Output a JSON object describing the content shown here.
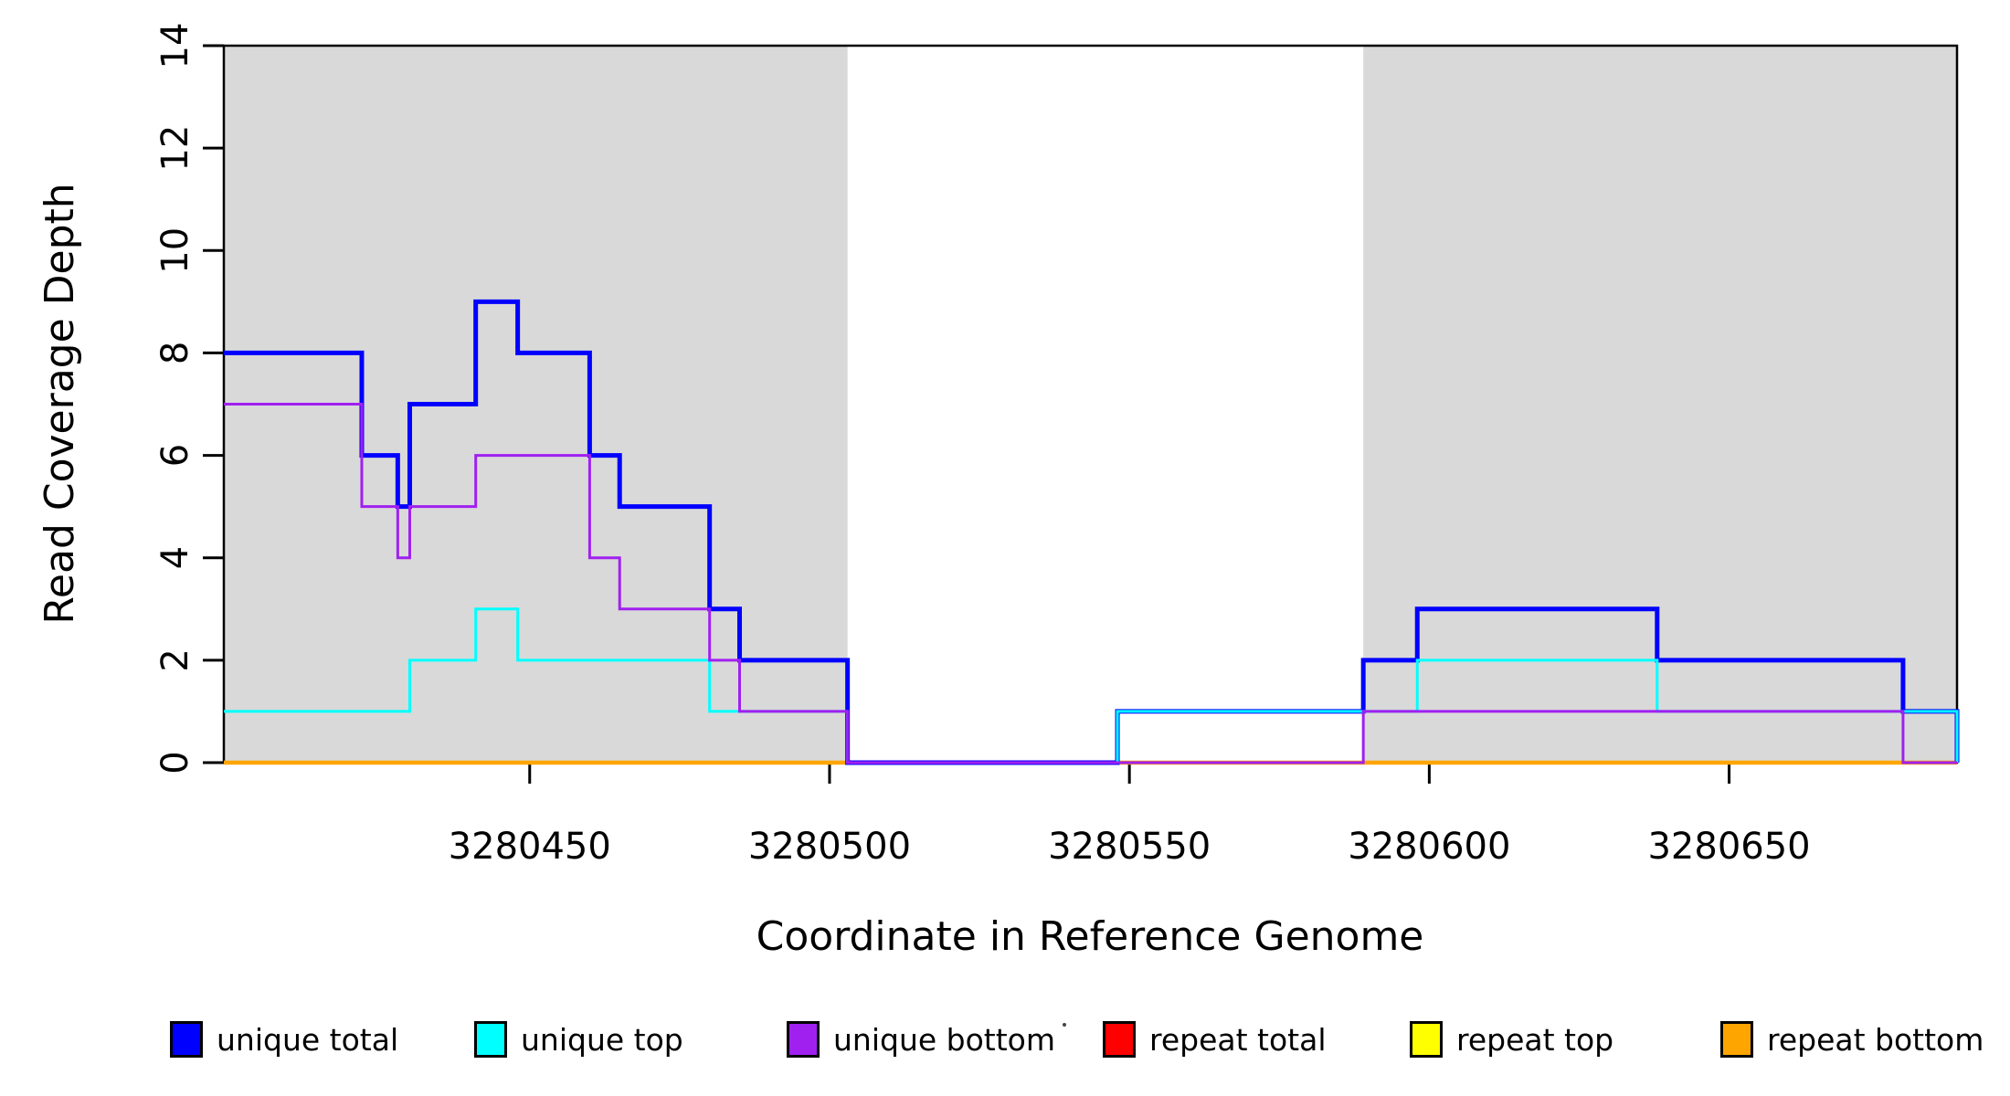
{
  "chart_data": {
    "type": "line",
    "subtype": "step",
    "title": "",
    "xlabel": "Coordinate in Reference Genome",
    "ylabel": "Read Coverage Depth",
    "xlim": [
      3280399,
      3280688
    ],
    "ylim": [
      0,
      14
    ],
    "xticks": [
      3280450,
      3280500,
      3280550,
      3280600,
      3280650
    ],
    "yticks": [
      0,
      2,
      4,
      6,
      8,
      10,
      12,
      14
    ],
    "grid": false,
    "legend_position": "bottom",
    "shade_color": "#d9d9d9",
    "shaded_regions": [
      {
        "from": 3280399,
        "to": 3280503
      },
      {
        "from": 3280589,
        "to": 3280688
      }
    ],
    "series": [
      {
        "name": "repeat total",
        "color": "#ff0000",
        "line_width": 3,
        "steps": [
          [
            3280399,
            0
          ],
          [
            3280688,
            0
          ]
        ]
      },
      {
        "name": "repeat top",
        "color": "#ffff00",
        "line_width": 3,
        "steps": [
          [
            3280399,
            0
          ],
          [
            3280688,
            0
          ]
        ]
      },
      {
        "name": "repeat bottom",
        "color": "#ffa500",
        "line_width": 4.5,
        "steps": [
          [
            3280399,
            0
          ],
          [
            3280688,
            0
          ]
        ]
      },
      {
        "name": "unique total",
        "color": "#0000ff",
        "line_width": 5,
        "steps": [
          [
            3280399,
            8
          ],
          [
            3280422,
            6
          ],
          [
            3280428,
            5
          ],
          [
            3280430,
            7
          ],
          [
            3280441,
            9
          ],
          [
            3280448,
            8
          ],
          [
            3280460,
            6
          ],
          [
            3280465,
            5
          ],
          [
            3280480,
            3
          ],
          [
            3280485,
            2
          ],
          [
            3280503,
            0
          ],
          [
            3280548,
            1
          ],
          [
            3280589,
            2
          ],
          [
            3280598,
            3
          ],
          [
            3280638,
            2
          ],
          [
            3280679,
            1
          ],
          [
            3280688,
            0
          ]
        ]
      },
      {
        "name": "unique top",
        "color": "#00ffff",
        "line_width": 3,
        "steps": [
          [
            3280399,
            1
          ],
          [
            3280430,
            2
          ],
          [
            3280441,
            3
          ],
          [
            3280448,
            2
          ],
          [
            3280480,
            1
          ],
          [
            3280503,
            0
          ],
          [
            3280548,
            1
          ],
          [
            3280598,
            2
          ],
          [
            3280638,
            1
          ],
          [
            3280688,
            0
          ]
        ]
      },
      {
        "name": "unique bottom",
        "color": "#a020f0",
        "line_width": 3,
        "steps": [
          [
            3280399,
            7
          ],
          [
            3280422,
            5
          ],
          [
            3280428,
            4
          ],
          [
            3280430,
            5
          ],
          [
            3280441,
            6
          ],
          [
            3280460,
            4
          ],
          [
            3280465,
            3
          ],
          [
            3280480,
            2
          ],
          [
            3280485,
            1
          ],
          [
            3280503,
            0
          ],
          [
            3280589,
            1
          ],
          [
            3280679,
            0
          ],
          [
            3280688,
            0
          ]
        ]
      }
    ],
    "legend": [
      {
        "label": "unique total",
        "color": "#0000ff"
      },
      {
        "label": "unique top",
        "color": "#00ffff"
      },
      {
        "label": "unique bottom",
        "color": "#a020f0"
      },
      {
        "label": "repeat total",
        "color": "#ff0000"
      },
      {
        "label": "repeat top",
        "color": "#ffff00"
      },
      {
        "label": "repeat bottom",
        "color": "#ffa500"
      }
    ]
  }
}
